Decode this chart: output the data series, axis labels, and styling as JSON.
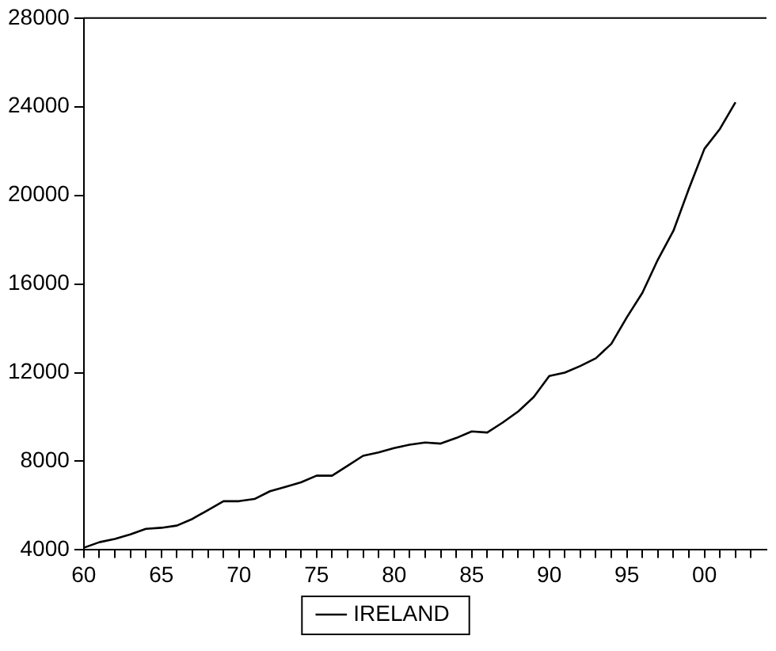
{
  "chart_data": {
    "type": "line",
    "x": [
      1960,
      1961,
      1962,
      1963,
      1964,
      1965,
      1966,
      1967,
      1968,
      1969,
      1970,
      1971,
      1972,
      1973,
      1974,
      1975,
      1976,
      1977,
      1978,
      1979,
      1980,
      1981,
      1982,
      1983,
      1984,
      1985,
      1986,
      1987,
      1988,
      1989,
      1990,
      1991,
      1992,
      1993,
      1994,
      1995,
      1996,
      1997,
      1998,
      1999,
      2000,
      2001,
      2002
    ],
    "series": [
      {
        "name": "IRELAND",
        "color": "#000000",
        "values": [
          4100,
          4350,
          4500,
          4700,
          4950,
          5000,
          5100,
          5400,
          5800,
          6200,
          6200,
          6300,
          6650,
          6850,
          7050,
          7350,
          7350,
          7800,
          8250,
          8400,
          8600,
          8750,
          8850,
          8800,
          9050,
          9350,
          9300,
          9750,
          10250,
          10900,
          11850,
          12000,
          12300,
          12650,
          13300,
          14500,
          15600,
          17100,
          18400,
          20300,
          22100,
          23000,
          24200
        ]
      }
    ],
    "xlim": [
      1960,
      2004
    ],
    "xticks": [
      {
        "value": 1960,
        "label": "60"
      },
      {
        "value": 1961,
        "label": null
      },
      {
        "value": 1962,
        "label": null
      },
      {
        "value": 1963,
        "label": null
      },
      {
        "value": 1964,
        "label": null
      },
      {
        "value": 1965,
        "label": "65"
      },
      {
        "value": 1966,
        "label": null
      },
      {
        "value": 1967,
        "label": null
      },
      {
        "value": 1968,
        "label": null
      },
      {
        "value": 1969,
        "label": null
      },
      {
        "value": 1970,
        "label": "70"
      },
      {
        "value": 1971,
        "label": null
      },
      {
        "value": 1972,
        "label": null
      },
      {
        "value": 1973,
        "label": null
      },
      {
        "value": 1974,
        "label": null
      },
      {
        "value": 1975,
        "label": "75"
      },
      {
        "value": 1976,
        "label": null
      },
      {
        "value": 1977,
        "label": null
      },
      {
        "value": 1978,
        "label": null
      },
      {
        "value": 1979,
        "label": null
      },
      {
        "value": 1980,
        "label": "80"
      },
      {
        "value": 1981,
        "label": null
      },
      {
        "value": 1982,
        "label": null
      },
      {
        "value": 1983,
        "label": null
      },
      {
        "value": 1984,
        "label": null
      },
      {
        "value": 1985,
        "label": "85"
      },
      {
        "value": 1986,
        "label": null
      },
      {
        "value": 1987,
        "label": null
      },
      {
        "value": 1988,
        "label": null
      },
      {
        "value": 1989,
        "label": null
      },
      {
        "value": 1990,
        "label": "90"
      },
      {
        "value": 1991,
        "label": null
      },
      {
        "value": 1992,
        "label": null
      },
      {
        "value": 1993,
        "label": null
      },
      {
        "value": 1994,
        "label": null
      },
      {
        "value": 1995,
        "label": "95"
      },
      {
        "value": 1996,
        "label": null
      },
      {
        "value": 1997,
        "label": null
      },
      {
        "value": 1998,
        "label": null
      },
      {
        "value": 1999,
        "label": null
      },
      {
        "value": 2000,
        "label": "00"
      },
      {
        "value": 2001,
        "label": null
      },
      {
        "value": 2002,
        "label": null
      },
      {
        "value": 2003,
        "label": null
      }
    ],
    "ylim": [
      4000,
      28000
    ],
    "yticks": [
      4000,
      8000,
      12000,
      16000,
      20000,
      24000,
      28000
    ],
    "grid": false,
    "legend": "bottom",
    "marker": "none",
    "line_style": "solid"
  }
}
